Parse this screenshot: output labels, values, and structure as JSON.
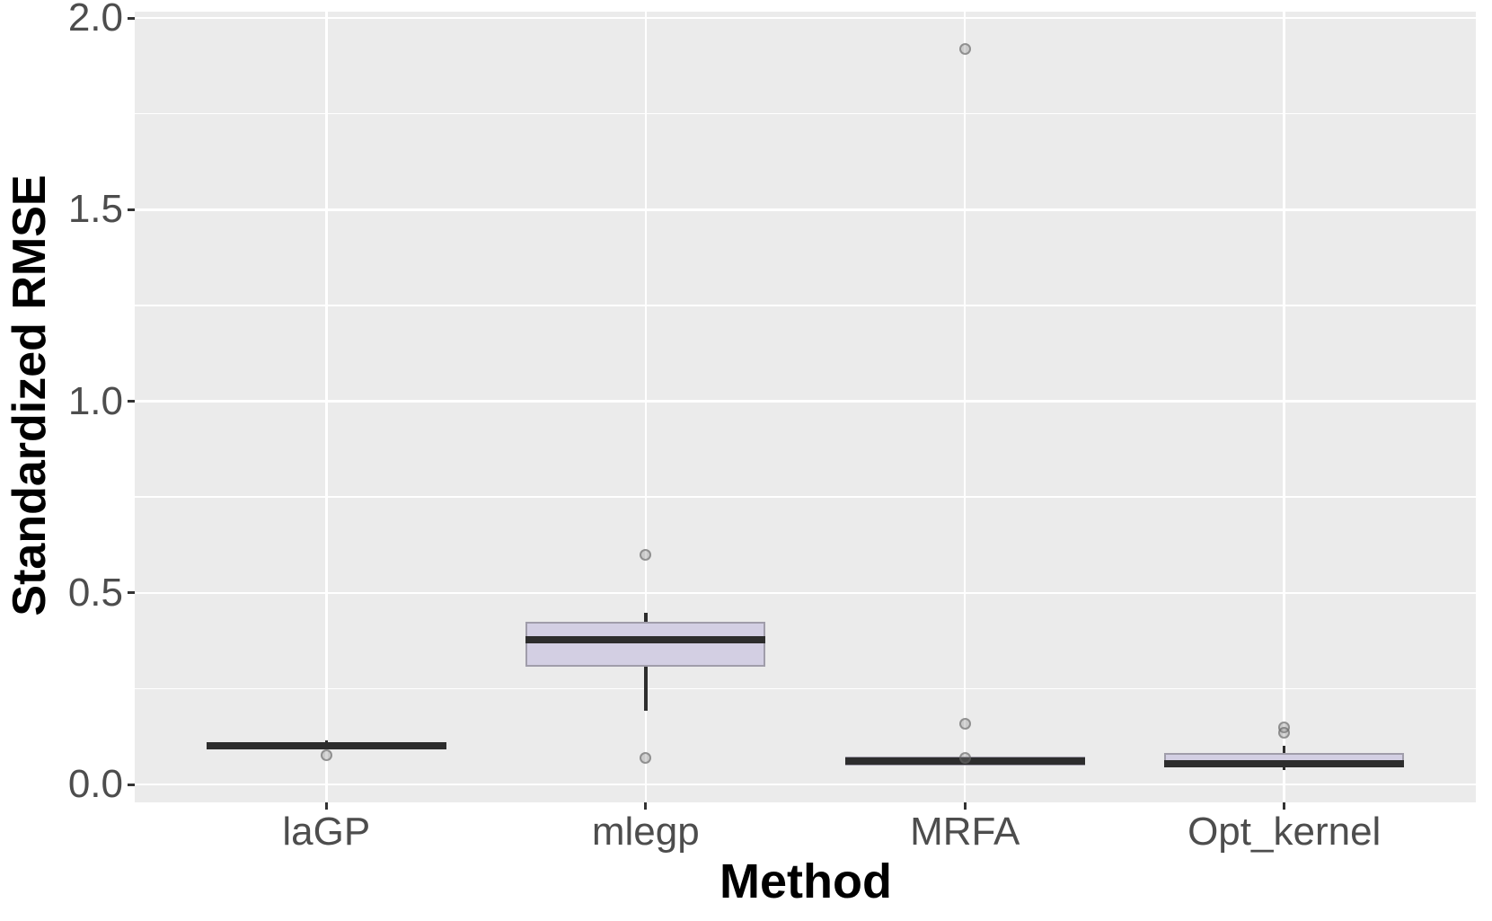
{
  "chart_data": {
    "type": "boxplot",
    "title": "",
    "xlabel": "Method",
    "ylabel": "Standardized RMSE",
    "categories": [
      "laGP",
      "mlegp",
      "MRFA",
      "Opt_kernel"
    ],
    "ylim": [
      0.0,
      2.0
    ],
    "yticks": [
      0.0,
      0.5,
      1.0,
      1.5,
      2.0
    ],
    "ytick_labels": [
      "0.0",
      "0.5",
      "1.0",
      "1.5",
      "2.0"
    ],
    "yminor": [
      0.25,
      0.75,
      1.25,
      1.75
    ],
    "legend_position": "none",
    "grid": "white major+minor horizontal lines and white vertical lines at category centers on gray panel",
    "series": [
      {
        "name": "laGP",
        "median": 0.1,
        "q1": 0.093,
        "q3": 0.107,
        "whisker_low": 0.093,
        "whisker_high": 0.115,
        "outliers": [
          0.077
        ]
      },
      {
        "name": "mlegp",
        "median": 0.377,
        "q1": 0.307,
        "q3": 0.424,
        "whisker_low": 0.192,
        "whisker_high": 0.448,
        "outliers": [
          0.6,
          0.07
        ]
      },
      {
        "name": "MRFA",
        "median": 0.06,
        "q1": 0.049,
        "q3": 0.072,
        "whisker_low": 0.049,
        "whisker_high": 0.072,
        "outliers": [
          1.92,
          0.159,
          0.07
        ]
      },
      {
        "name": "Opt_kernel",
        "median": 0.055,
        "q1": 0.049,
        "q3": 0.082,
        "whisker_low": 0.038,
        "whisker_high": 0.1,
        "outliers": [
          0.148,
          0.134
        ]
      }
    ],
    "colors": {
      "panel_background": "#ebebeb",
      "gridline": "#ffffff",
      "box_fill": "#d3cfe3",
      "box_border": "#a09daa",
      "median_line": "#2d2d2d",
      "whisker": "#2d2d2d",
      "outlier_fill": "#c6c6c6",
      "outlier_stroke": "#8f8f8f",
      "tick_label": "#4d4d4d",
      "axis_title": "#000000",
      "figure_background": "#ffffff"
    }
  }
}
